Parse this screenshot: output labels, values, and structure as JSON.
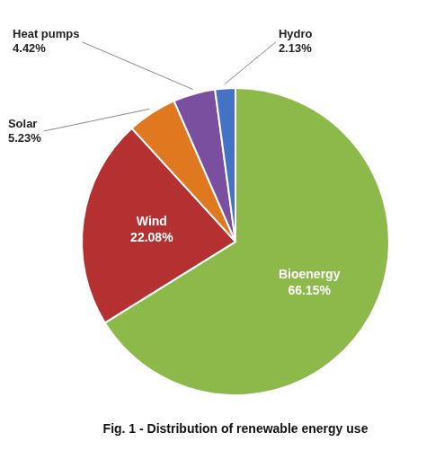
{
  "chart_data": {
    "type": "pie",
    "title": "Fig. 1 - Distribution of renewable energy use",
    "categories": [
      "Bioenergy",
      "Wind",
      "Solar",
      "Heat pumps",
      "Hydro"
    ],
    "values": [
      66.15,
      22.08,
      5.23,
      4.42,
      2.13
    ],
    "value_labels": [
      "66.15%",
      "22.08%",
      "5.23%",
      "4.42%",
      "2.13%"
    ],
    "colors": [
      "#8db84a",
      "#b53030",
      "#e07820",
      "#7b4fa0",
      "#4472c4"
    ],
    "data_labels": true
  }
}
